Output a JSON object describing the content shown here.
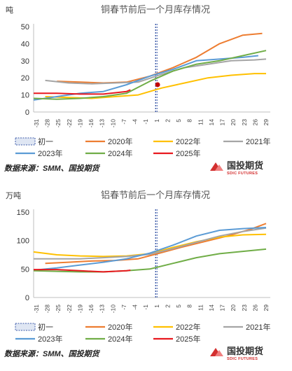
{
  "colors": {
    "first_day": "#3d5ba9",
    "2020": "#ed7d31",
    "2022": "#ffc000",
    "2021": "#a5a5a5",
    "2023": "#5b9bd5",
    "2024": "#70ad47",
    "2025": "#e8191f",
    "marker": "#c00000",
    "axis": "#bfbfbf",
    "logo": "#d32f2f"
  },
  "source": "数据来源：SMM、国投期货",
  "logo": {
    "name": "国投期货",
    "sub": "SDIC FUTURES"
  },
  "chart_data": [
    {
      "type": "line",
      "title": "铜春节前后一个月库存情况",
      "unit": "吨",
      "ylim": [
        0,
        50
      ],
      "yticks": [
        0,
        10,
        20,
        30,
        40,
        50
      ],
      "grid": false,
      "x_categories": [
        "-31",
        "-28",
        "-25",
        "-22",
        "-19",
        "-16",
        "-13",
        "-10",
        "-7",
        "-4",
        "-1",
        "2",
        "5",
        "8",
        "11",
        "14",
        "17",
        "20",
        "23",
        "26",
        "29"
      ],
      "xtick_labels": [
        "-31",
        "-28",
        "-25",
        "-22",
        "-19",
        "-16",
        "-13",
        "-10",
        "-7",
        "-4",
        "-1",
        "1",
        "2",
        "5",
        "8",
        "11",
        "14",
        "17",
        "20",
        "23",
        "26",
        "29"
      ],
      "first_day_label": "1",
      "legend": [
        {
          "key": "first_day",
          "label": "初一",
          "style": "dashed-box"
        },
        {
          "key": "2020",
          "label": "2020年"
        },
        {
          "key": "2022",
          "label": "2022年"
        },
        {
          "key": "2021",
          "label": "2021年"
        },
        {
          "key": "2023",
          "label": "2023年"
        },
        {
          "key": "2024",
          "label": "2024年"
        },
        {
          "key": "2025",
          "label": "2025年"
        }
      ],
      "series": [
        {
          "name": "2020年",
          "key": "2020",
          "x": [
            -25,
            -19,
            -13,
            -7,
            -1,
            5,
            11,
            17,
            23,
            28
          ],
          "values": [
            18,
            17.5,
            17,
            17.5,
            21,
            26,
            32,
            40,
            45,
            46
          ]
        },
        {
          "name": "2022年",
          "key": "2022",
          "x": [
            -28,
            -22,
            -16,
            -10,
            -4,
            2,
            8,
            14,
            20,
            26,
            29
          ],
          "values": [
            9,
            8.5,
            8,
            9,
            10,
            14,
            17,
            20,
            21.5,
            22.5,
            22.5
          ]
        },
        {
          "name": "2021年",
          "key": "2021",
          "x": [
            -28,
            -22,
            -16,
            -10,
            -4,
            2,
            8,
            14,
            20,
            26,
            29
          ],
          "values": [
            18.5,
            17,
            16.5,
            17,
            17.5,
            22,
            26,
            28,
            30,
            30.5,
            31
          ]
        },
        {
          "name": "2023年",
          "key": "2023",
          "x": [
            -31,
            -25,
            -19,
            -13,
            -7,
            -1,
            5,
            11,
            17,
            23,
            27
          ],
          "values": [
            7,
            9,
            11,
            12,
            16,
            21,
            25,
            30,
            31,
            32,
            33
          ]
        },
        {
          "name": "2024年",
          "key": "2024",
          "x": [
            -31,
            -25,
            -19,
            -13,
            -7,
            -1,
            5,
            11,
            17,
            23,
            29
          ],
          "values": [
            8,
            7.5,
            8,
            9,
            11,
            18,
            24,
            28,
            30,
            33,
            36
          ]
        },
        {
          "name": "2025年",
          "key": "2025",
          "x": [
            -31,
            -25,
            -19,
            -13,
            -7,
            -6
          ],
          "values": [
            11,
            11,
            10.5,
            10.5,
            12,
            13
          ]
        }
      ],
      "markers": [
        {
          "x": 1,
          "y": 16
        }
      ]
    },
    {
      "type": "line",
      "title": "铝春节前后一个月库存情况",
      "unit": "万吨",
      "ylim": [
        0,
        150
      ],
      "yticks": [
        0,
        50,
        100,
        150
      ],
      "grid": false,
      "x_categories": [
        "-31",
        "-28",
        "-25",
        "-22",
        "-19",
        "-16",
        "-13",
        "-10",
        "-7",
        "-4",
        "-1",
        "2",
        "5",
        "8",
        "11",
        "14",
        "17",
        "20",
        "23",
        "26",
        "29"
      ],
      "xtick_labels": [
        "-31",
        "-28",
        "-25",
        "-22",
        "-19",
        "-16",
        "-13",
        "-10",
        "-7",
        "-4",
        "-1",
        "1",
        "2",
        "5",
        "8",
        "11",
        "14",
        "17",
        "20",
        "23",
        "26",
        "29"
      ],
      "first_day_label": "1",
      "legend": [
        {
          "key": "first_day",
          "label": "初一",
          "style": "dashed-box"
        },
        {
          "key": "2020",
          "label": "2020年"
        },
        {
          "key": "2022",
          "label": "2022年"
        },
        {
          "key": "2021",
          "label": "2021年"
        },
        {
          "key": "2023",
          "label": "2023年"
        },
        {
          "key": "2024",
          "label": "2024年"
        },
        {
          "key": "2025",
          "label": "2025年"
        }
      ],
      "series": [
        {
          "name": "2020年",
          "key": "2020",
          "x": [
            -28,
            -22,
            -16,
            -10,
            -4,
            1,
            7,
            13,
            19,
            25,
            29
          ],
          "values": [
            60,
            62,
            64,
            65,
            68,
            77,
            88,
            98,
            108,
            120,
            130
          ]
        },
        {
          "name": "2022年",
          "key": "2022",
          "x": [
            -31,
            -25,
            -19,
            -13,
            -7,
            -1,
            5,
            11,
            17,
            23,
            29
          ],
          "values": [
            80,
            75,
            73,
            72,
            73,
            77,
            88,
            98,
            106,
            110,
            111
          ]
        },
        {
          "name": "2021年",
          "key": "2021",
          "x": [
            -31,
            -25,
            -19,
            -13,
            -7,
            -1,
            5,
            11,
            17,
            23,
            29
          ],
          "values": [
            68,
            68,
            68,
            70,
            72,
            76,
            86,
            97,
            108,
            116,
            122
          ]
        },
        {
          "name": "2023年",
          "key": "2023",
          "x": [
            -31,
            -25,
            -19,
            -13,
            -7,
            -1,
            5,
            11,
            17,
            23,
            29
          ],
          "values": [
            48,
            52,
            57,
            62,
            68,
            78,
            92,
            108,
            118,
            121,
            123
          ]
        },
        {
          "name": "2024年",
          "key": "2024",
          "x": [
            -31,
            -25,
            -19,
            -13,
            -7,
            -1,
            5,
            11,
            17,
            23,
            29
          ],
          "values": [
            47,
            46,
            45,
            45,
            47,
            50,
            60,
            70,
            77,
            81,
            85
          ]
        },
        {
          "name": "2025年",
          "key": "2025",
          "x": [
            -31,
            -25,
            -19,
            -13,
            -7,
            -6
          ],
          "values": [
            49,
            49,
            47,
            45,
            47,
            48
          ]
        }
      ],
      "markers": []
    }
  ]
}
